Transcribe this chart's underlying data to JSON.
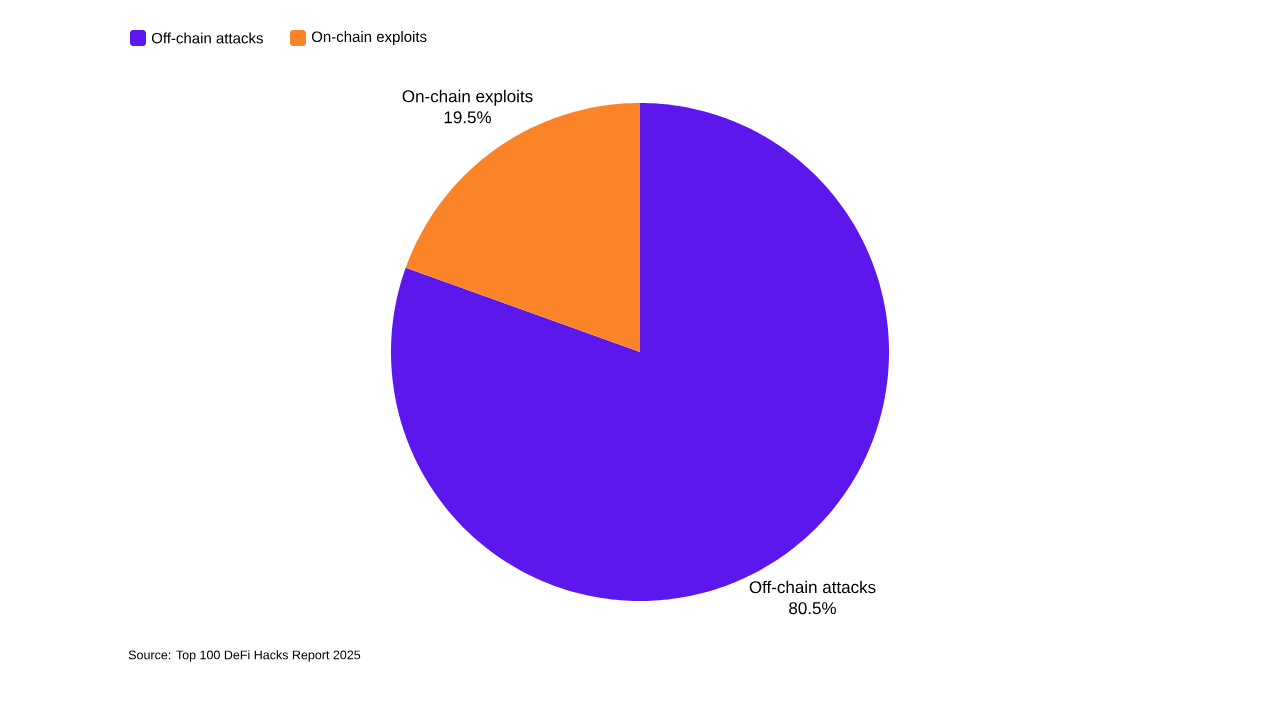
{
  "chart_data": {
    "type": "pie",
    "categories": [
      "Off-chain attacks",
      "On-chain exploits"
    ],
    "values": [
      80.5,
      19.5
    ],
    "colors": [
      "#5c17ec",
      "#fb8429"
    ],
    "value_labels": [
      "80.5%",
      "19.5%"
    ],
    "legend": "top left",
    "annotations": [
      "Source: Top 100 DeFi Hacks Report 2025"
    ]
  }
}
